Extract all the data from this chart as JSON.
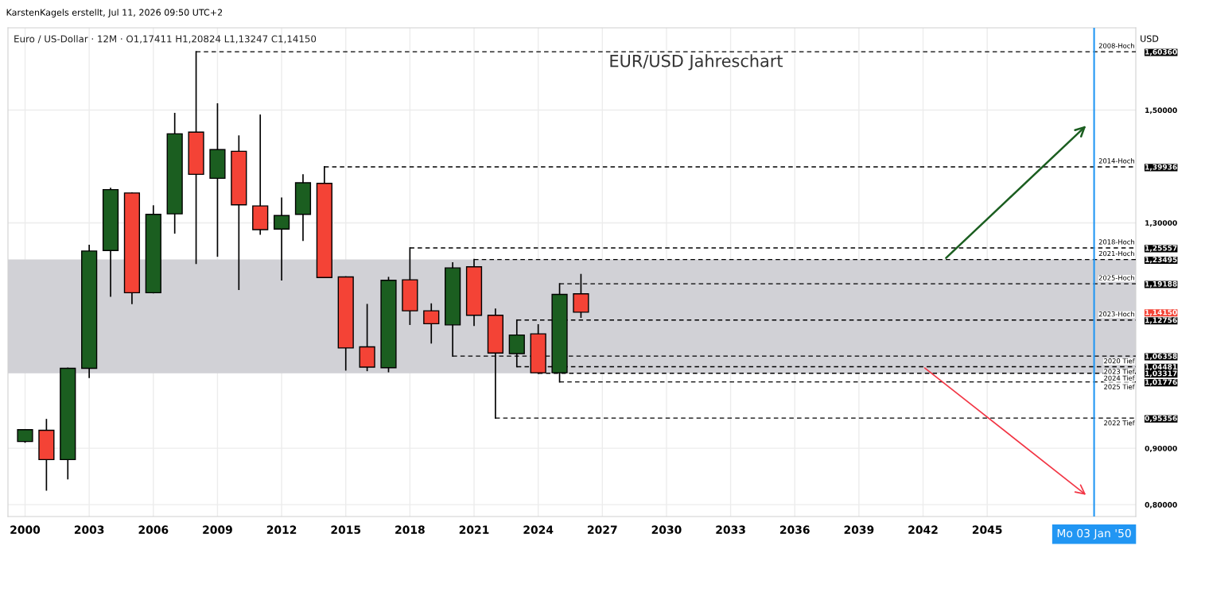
{
  "chart_data": {
    "type": "candlestick",
    "title": "EUR/USD Jahreschart",
    "subtitle": "Euro / US-Dollar · 12M · O1,17411 H1,20824 L1,13247 C1,14150",
    "annotations": [
      "KarstenKagels erstellt, Jul 11, 2026 09:50 UTC+2"
    ],
    "ylabel": "USD",
    "x": [
      2000,
      2001,
      2002,
      2003,
      2004,
      2005,
      2006,
      2007,
      2008,
      2009,
      2010,
      2011,
      2012,
      2013,
      2014,
      2015,
      2016,
      2017,
      2018,
      2019,
      2020,
      2021,
      2022,
      2023,
      2024,
      2025,
      2026
    ],
    "ohlc": [
      [
        0.912,
        0.933,
        0.911,
        0.933
      ],
      [
        0.932,
        0.951,
        0.826,
        0.88
      ],
      [
        0.88,
        1.042,
        0.846,
        1.042
      ],
      [
        1.042,
        1.26,
        1.026,
        1.25
      ],
      [
        1.251,
        1.361,
        1.17,
        1.359
      ],
      [
        1.353,
        1.353,
        1.157,
        1.176
      ],
      [
        1.176,
        1.33,
        1.176,
        1.315
      ],
      [
        1.316,
        1.494,
        1.282,
        1.458
      ],
      [
        1.461,
        1.6036,
        1.228,
        1.386
      ],
      [
        1.379,
        1.511,
        1.241,
        1.43
      ],
      [
        1.427,
        1.454,
        1.182,
        1.332
      ],
      [
        1.33,
        1.491,
        1.28,
        1.288
      ],
      [
        1.289,
        1.344,
        1.199,
        1.313
      ],
      [
        1.315,
        1.385,
        1.269,
        1.371
      ],
      [
        1.37,
        1.39936,
        1.203,
        1.203
      ],
      [
        1.204,
        1.204,
        1.039,
        1.078
      ],
      [
        1.08,
        1.155,
        1.038,
        1.044
      ],
      [
        1.043,
        1.203,
        1.036,
        1.198
      ],
      [
        1.199,
        1.25557,
        1.12,
        1.144
      ],
      [
        1.144,
        1.156,
        1.087,
        1.121
      ],
      [
        1.119,
        1.229,
        1.06358,
        1.22
      ],
      [
        1.222,
        1.23495,
        1.118,
        1.136
      ],
      [
        1.136,
        1.147,
        0.95356,
        1.069
      ],
      [
        1.068,
        1.12756,
        1.04481,
        1.101
      ],
      [
        1.103,
        1.119,
        1.03317,
        1.034
      ],
      [
        1.034,
        1.19188,
        1.01776,
        1.173
      ],
      [
        1.17411,
        1.20824,
        1.13247,
        1.1415
      ]
    ],
    "colors": [
      "#1b5e20",
      "#f44336",
      "#1b5e20",
      "#1b5e20",
      "#1b5e20",
      "#f44336",
      "#1b5e20",
      "#1b5e20",
      "#f44336",
      "#1b5e20",
      "#f44336",
      "#f44336",
      "#1b5e20",
      "#1b5e20",
      "#f44336",
      "#f44336",
      "#f44336",
      "#1b5e20",
      "#f44336",
      "#f44336",
      "#1b5e20",
      "#f44336",
      "#f44336",
      "#1b5e20",
      "#f44336",
      "#1b5e20",
      "#f44336"
    ],
    "xlim": [
      1999.2,
      2051.95
    ],
    "ylim": [
      0.779,
      1.646
    ],
    "xticks": [
      2000,
      2003,
      2006,
      2009,
      2012,
      2015,
      2018,
      2021,
      2024,
      2027,
      2030,
      2033,
      2036,
      2039,
      2042,
      2045
    ],
    "yticks": [
      {
        "value": 0.8,
        "label": "0,80000"
      },
      {
        "value": 0.9,
        "label": "0,90000"
      },
      {
        "value": 1.3,
        "label": "1,30000"
      },
      {
        "value": 1.5,
        "label": "1,50000"
      },
      {
        "value": 1.6036,
        "label": "1,60360"
      },
      {
        "value": 1.39936,
        "label": "1,39936"
      },
      {
        "value": 1.25557,
        "label": "1,25557"
      },
      {
        "value": 1.23495,
        "label": "1,23495"
      },
      {
        "value": 1.19188,
        "label": "1,19188"
      },
      {
        "value": 1.1415,
        "label": "1,14150"
      },
      {
        "value": 1.12756,
        "label": "1,12756"
      },
      {
        "value": 1.06358,
        "label": "1,06358"
      },
      {
        "value": 1.04481,
        "label": "1,04481"
      },
      {
        "value": 1.03317,
        "label": "1,03317"
      },
      {
        "value": 1.01776,
        "label": "1,01776"
      },
      {
        "value": 0.95356,
        "label": "0,95356"
      }
    ],
    "grid": true,
    "ref_lines": [
      {
        "axis": "y",
        "value": 1.6036,
        "label": "2008-Hoch",
        "line_style": "dashed",
        "color": "#000000"
      },
      {
        "axis": "y",
        "value": 1.39936,
        "label": "2014-Hoch",
        "line_style": "dashed",
        "color": "#000000"
      },
      {
        "axis": "y",
        "value": 1.25557,
        "label": "2018-Hoch",
        "line_style": "dashed",
        "color": "#000000"
      },
      {
        "axis": "y",
        "value": 1.23495,
        "label": "2021-Hoch",
        "line_style": "dashed",
        "color": "#000000"
      },
      {
        "axis": "y",
        "value": 1.19188,
        "label": "2025-Hoch",
        "line_style": "dashed",
        "color": "#000000"
      },
      {
        "axis": "y",
        "value": 1.12756,
        "label": "2023-Hoch",
        "line_style": "dashed",
        "color": "#000000"
      },
      {
        "axis": "y",
        "value": 1.06358,
        "label": "2020 Tief",
        "line_style": "dashed",
        "color": "#000000"
      },
      {
        "axis": "y",
        "value": 1.04481,
        "label": "2023 Tief",
        "line_style": "dashed",
        "color": "#000000"
      },
      {
        "axis": "y",
        "value": 1.03317,
        "label": "2024 Tief",
        "line_style": "dashed",
        "color": "#000000"
      },
      {
        "axis": "y",
        "value": 1.01776,
        "label": "2025 Tief",
        "line_style": "dashed",
        "color": "#000000"
      },
      {
        "axis": "y",
        "value": 0.95356,
        "label": "2022 Tief",
        "line_style": "dashed",
        "color": "#000000"
      },
      {
        "axis": "x",
        "value": 2050,
        "label": "Mo 03 Jan '50",
        "line_style": "solid",
        "color": "#2196f3"
      }
    ],
    "bands": [
      {
        "axis": "y",
        "from": 1.03317,
        "to": 1.23495,
        "color": "#d1d1d6"
      }
    ]
  }
}
